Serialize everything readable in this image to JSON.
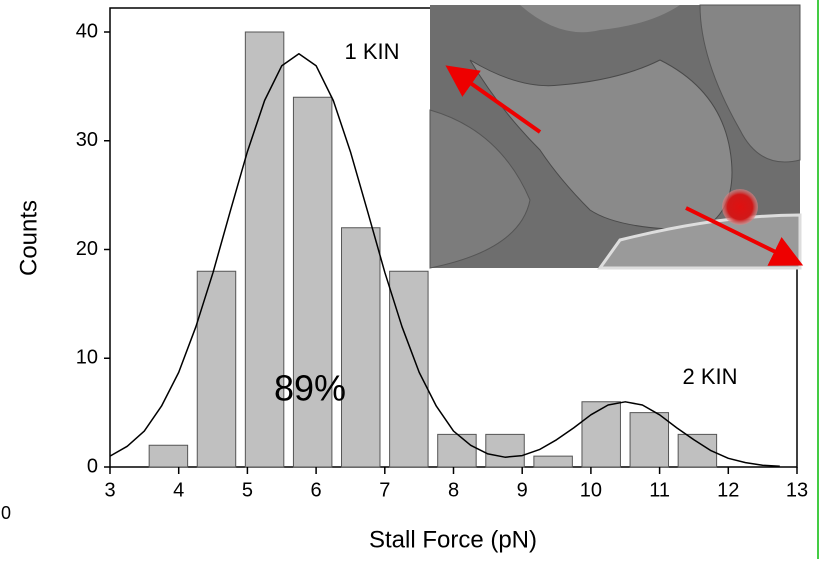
{
  "chart_data": {
    "type": "histogram",
    "xlabel": "Stall Force (pN)",
    "ylabel": "Counts",
    "bins": [
      3.5,
      4.2,
      4.9,
      5.6,
      6.3,
      7.0,
      7.7,
      8.4,
      9.1,
      9.8,
      10.5,
      11.2,
      11.9
    ],
    "values": [
      2,
      18,
      40,
      34,
      22,
      18,
      3,
      3,
      1,
      6,
      5,
      3
    ],
    "color": "#c0c0c0",
    "fit": {
      "x": [
        3,
        3.25,
        3.5,
        3.75,
        4,
        4.25,
        4.5,
        4.75,
        5,
        5.25,
        5.5,
        5.75,
        6,
        6.25,
        6.5,
        6.75,
        7,
        7.25,
        7.5,
        7.75,
        8,
        8.25,
        8.5,
        8.75,
        9,
        9.25,
        9.5,
        9.75,
        10,
        10.25,
        10.5,
        10.75,
        11,
        11.25,
        11.5,
        11.75,
        12,
        12.25,
        12.5,
        12.75
      ],
      "values": [
        1.0,
        1.9,
        3.3,
        5.6,
        8.7,
        12.9,
        17.9,
        23.5,
        29.0,
        33.7,
        36.9,
        38,
        36.9,
        33.7,
        29.0,
        23.5,
        17.9,
        12.9,
        8.7,
        5.6,
        3.3,
        2.0,
        1.2,
        0.9,
        1.05,
        1.6,
        2.5,
        3.6,
        4.8,
        5.7,
        6,
        5.7,
        4.8,
        3.6,
        2.5,
        1.5,
        0.8,
        0.4,
        0.17,
        0.07
      ],
      "color": "#000000"
    },
    "xlim": [
      3,
      13
    ],
    "xticks": [
      3,
      4,
      5,
      6,
      7,
      8,
      9,
      10,
      11,
      12,
      13
    ],
    "ylim": [
      0,
      40
    ],
    "yticks": [
      0,
      10,
      20,
      30,
      40
    ],
    "annotations": [
      "1 KIN",
      "2 KIN",
      "89%",
      "0"
    ]
  }
}
